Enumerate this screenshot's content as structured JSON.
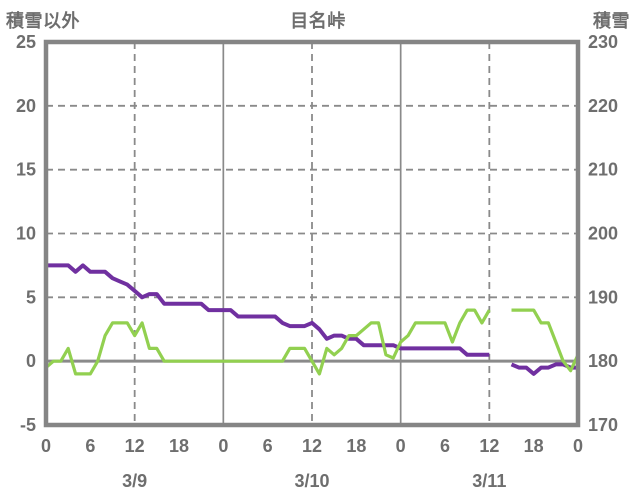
{
  "header": {
    "left_axis_title": "積雪以外",
    "title": "目名峠",
    "right_axis_title": "積雪"
  },
  "colors": {
    "purple": "#7030A0",
    "green": "#92D050",
    "grid": "#8a8a8a",
    "border": "#858585",
    "zero_line": "#8a8a8a",
    "text": "#6e6e6e"
  },
  "chart_data": {
    "type": "line",
    "title": "目名峠",
    "x_hours_span": 72,
    "x_tick_labels": [
      "0",
      "6",
      "12",
      "18",
      "0",
      "6",
      "12",
      "18",
      "0",
      "6",
      "12",
      "18",
      "0"
    ],
    "date_labels": [
      "3/9",
      "3/10",
      "3/11"
    ],
    "left_axis": {
      "title": "積雪以外",
      "range": [
        -5,
        25
      ],
      "ticks": [
        25,
        20,
        15,
        10,
        5,
        0,
        -5
      ]
    },
    "right_axis": {
      "title": "積雪",
      "range": [
        170,
        230
      ],
      "ticks": [
        230,
        220,
        210,
        200,
        190,
        180,
        170
      ]
    },
    "grid": {
      "h_dashed_at": [
        20,
        15,
        10,
        5
      ],
      "zero_line_at": 0,
      "v_solid_at_hours": [
        24,
        48
      ],
      "v_dashed_at_hours": [
        12,
        36,
        60
      ],
      "legend": "none"
    },
    "series": [
      {
        "id": "sekisetsu",
        "name": "積雪",
        "axis": "right",
        "color": "#7030A0",
        "width": 4,
        "x_step_hours": 1,
        "values": [
          195,
          195,
          195,
          195,
          194,
          195,
          194,
          194,
          194,
          193,
          192.5,
          192,
          191,
          190,
          190.5,
          190.5,
          189,
          189,
          189,
          189,
          189,
          189,
          188,
          188,
          188,
          188,
          187,
          187,
          187,
          187,
          187,
          187,
          186,
          185.5,
          185.5,
          185.5,
          186,
          185,
          183.5,
          184,
          184,
          183.5,
          183.5,
          182.5,
          182.5,
          182.5,
          182.5,
          182.5,
          182,
          182,
          182,
          182,
          182,
          182,
          182,
          182,
          182,
          181,
          181,
          181,
          181,
          null,
          null,
          179.5,
          179,
          179,
          178,
          179,
          179,
          179.5,
          179.5,
          179,
          179
        ]
      },
      {
        "id": "sekisetsu-igai",
        "name": "積雪以外",
        "axis": "left",
        "color": "#92D050",
        "width": 3.2,
        "x_step_hours": 1,
        "values": [
          -0.5,
          0,
          0,
          1,
          -1,
          -1,
          -1,
          0,
          2,
          3,
          3,
          3,
          2,
          3,
          1,
          1,
          0,
          0,
          0,
          0,
          0,
          0,
          0,
          0,
          0,
          0,
          0,
          0,
          0,
          0,
          0,
          0,
          0,
          1,
          1,
          1,
          0,
          -1,
          1,
          0.5,
          1,
          2,
          2,
          2.5,
          3,
          3,
          0.5,
          0.25,
          1.5,
          2,
          3,
          3,
          3,
          3,
          3,
          1.5,
          3,
          4,
          4,
          3,
          4,
          null,
          null,
          4,
          4,
          4,
          4,
          3,
          3,
          1.5,
          0,
          -0.75,
          0.5
        ]
      }
    ]
  }
}
